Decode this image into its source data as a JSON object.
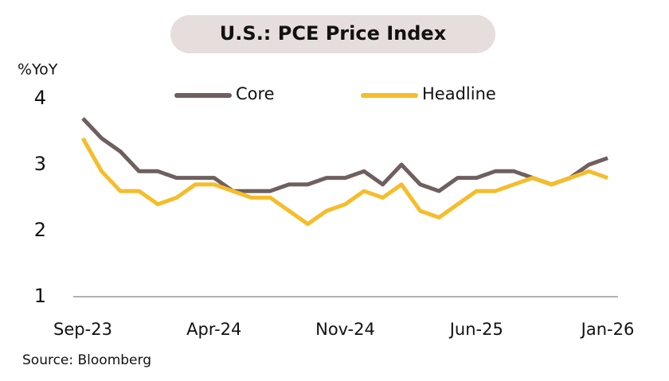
{
  "chart_data": {
    "type": "line",
    "title": "U.S.: PCE Price Index",
    "y_label": "%YoY",
    "source": "Source: Bloomberg",
    "categories": [
      "Sep-23",
      null,
      null,
      null,
      null,
      null,
      null,
      "Apr-24",
      null,
      null,
      null,
      null,
      null,
      null,
      "Nov-24",
      null,
      null,
      null,
      null,
      null,
      null,
      "Jun-25",
      null,
      null,
      null,
      null,
      null,
      null,
      "Jan-26"
    ],
    "series": [
      {
        "name": "Core",
        "color": "#6f5f5f",
        "values": [
          3.7,
          3.4,
          3.2,
          2.9,
          2.9,
          2.8,
          2.8,
          2.8,
          2.6,
          2.6,
          2.6,
          2.7,
          2.7,
          2.8,
          2.8,
          2.9,
          2.7,
          3.0,
          2.7,
          2.6,
          2.8,
          2.8,
          2.9,
          2.9,
          2.8,
          2.7,
          2.8,
          3.0,
          3.1
        ]
      },
      {
        "name": "Headline",
        "color": "#f6bd2a",
        "values": [
          3.4,
          2.9,
          2.6,
          2.6,
          2.4,
          2.5,
          2.7,
          2.7,
          2.6,
          2.5,
          2.5,
          2.3,
          2.1,
          2.3,
          2.4,
          2.6,
          2.5,
          2.7,
          2.3,
          2.2,
          2.4,
          2.6,
          2.6,
          2.7,
          2.8,
          2.7,
          2.8,
          2.9,
          2.8
        ]
      }
    ],
    "ylim": [
      1,
      4
    ],
    "yticks": [
      1,
      2,
      3,
      4
    ]
  }
}
